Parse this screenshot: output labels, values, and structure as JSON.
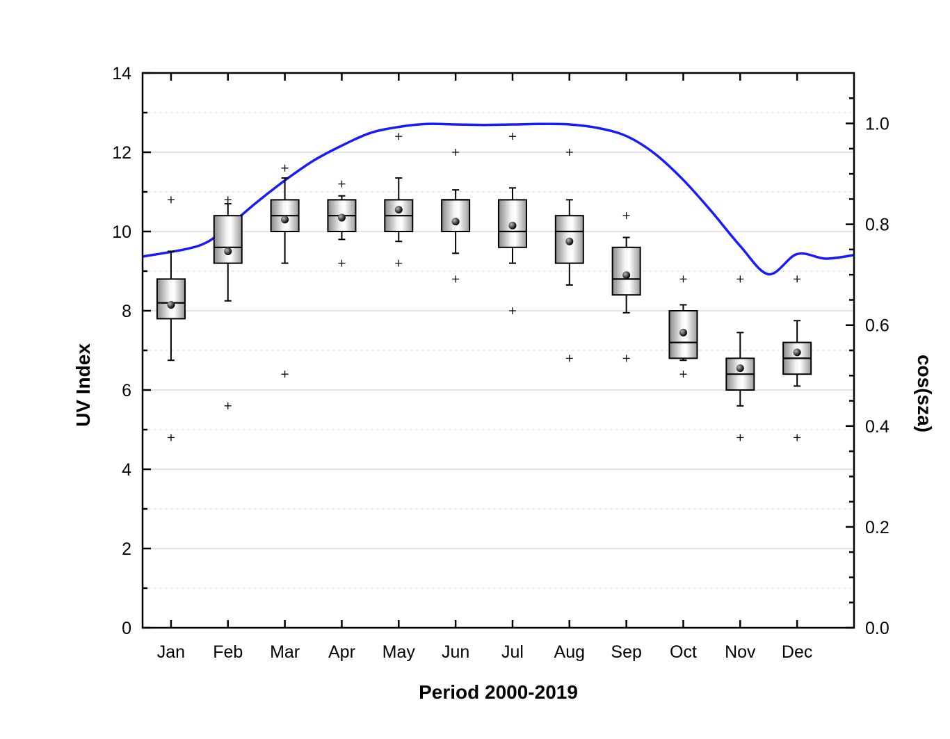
{
  "chart_data": {
    "type": "box",
    "xlabel": "Period 2000-2019",
    "ylabel": "UV Index",
    "y2label": "cos(sza)",
    "ylim": [
      0,
      14
    ],
    "y2lim": [
      0.0,
      1.1
    ],
    "y_ticks": [
      "0",
      "2",
      "4",
      "6",
      "8",
      "10",
      "12",
      "14"
    ],
    "y2_ticks": [
      "0.0",
      "0.2",
      "0.4",
      "0.6",
      "0.8",
      "1.0"
    ],
    "grid": true,
    "categories": [
      "Jan",
      "Feb",
      "Mar",
      "Apr",
      "May",
      "Jun",
      "Jul",
      "Aug",
      "Sep",
      "Oct",
      "Nov",
      "Dec"
    ],
    "boxes": [
      {
        "whisker_low": 6.75,
        "q1": 7.8,
        "median": 8.2,
        "q3": 8.8,
        "whisker_high": 9.5,
        "mean": 8.15,
        "outliers": [
          10.8,
          4.8
        ]
      },
      {
        "whisker_low": 8.25,
        "q1": 9.2,
        "median": 9.6,
        "q3": 10.4,
        "whisker_high": 10.7,
        "mean": 9.5,
        "outliers": [
          10.8,
          5.6
        ]
      },
      {
        "whisker_low": 9.2,
        "q1": 10.0,
        "median": 10.4,
        "q3": 10.8,
        "whisker_high": 11.35,
        "mean": 10.3,
        "outliers": [
          11.6,
          6.4
        ]
      },
      {
        "whisker_low": 9.8,
        "q1": 10.0,
        "median": 10.4,
        "q3": 10.8,
        "whisker_high": 10.9,
        "mean": 10.35,
        "outliers": [
          11.2,
          9.2
        ]
      },
      {
        "whisker_low": 9.75,
        "q1": 10.0,
        "median": 10.4,
        "q3": 10.8,
        "whisker_high": 11.35,
        "mean": 10.55,
        "outliers": [
          12.4,
          9.2
        ]
      },
      {
        "whisker_low": 9.45,
        "q1": 10.0,
        "median": 10.8,
        "q3": 10.8,
        "whisker_high": 11.05,
        "mean": 10.25,
        "outliers": [
          12.0,
          8.8
        ]
      },
      {
        "whisker_low": 9.2,
        "q1": 9.6,
        "median": 10.0,
        "q3": 10.8,
        "whisker_high": 11.1,
        "mean": 10.15,
        "outliers": [
          12.4,
          8.0
        ]
      },
      {
        "whisker_low": 8.65,
        "q1": 9.2,
        "median": 10.0,
        "q3": 10.4,
        "whisker_high": 10.8,
        "mean": 9.75,
        "outliers": [
          12.0,
          6.8
        ]
      },
      {
        "whisker_low": 7.95,
        "q1": 8.4,
        "median": 8.8,
        "q3": 9.6,
        "whisker_high": 9.85,
        "mean": 8.9,
        "outliers": [
          10.4,
          6.8
        ]
      },
      {
        "whisker_low": 6.75,
        "q1": 6.8,
        "median": 7.2,
        "q3": 8.0,
        "whisker_high": 8.15,
        "mean": 7.45,
        "outliers": [
          8.8,
          6.4
        ]
      },
      {
        "whisker_low": 5.6,
        "q1": 6.0,
        "median": 6.4,
        "q3": 6.8,
        "whisker_high": 7.45,
        "mean": 6.55,
        "outliers": [
          8.8,
          4.8
        ]
      },
      {
        "whisker_low": 6.1,
        "q1": 6.4,
        "median": 6.8,
        "q3": 7.2,
        "whisker_high": 7.75,
        "mean": 6.95,
        "outliers": [
          8.8,
          4.8
        ]
      }
    ],
    "cos_sza_curve": {
      "axis": "right",
      "color": "#1a1aff",
      "x": [
        0.5,
        1,
        1.5,
        2,
        2.5,
        3,
        3.5,
        4,
        4.5,
        5,
        5.5,
        6,
        6.5,
        7,
        7.5,
        8,
        8.5,
        9,
        9.5,
        10,
        10.5,
        11,
        11.5,
        12,
        12.5
      ],
      "y": [
        0.736,
        0.758,
        0.796,
        0.843,
        0.887,
        0.926,
        0.956,
        0.981,
        0.993,
        0.999,
        0.998,
        0.997,
        0.998,
        0.999,
        0.998,
        0.991,
        0.975,
        0.94,
        0.888,
        0.825,
        0.757,
        0.701,
        0.741,
        0.732,
        0.739
      ]
    }
  }
}
